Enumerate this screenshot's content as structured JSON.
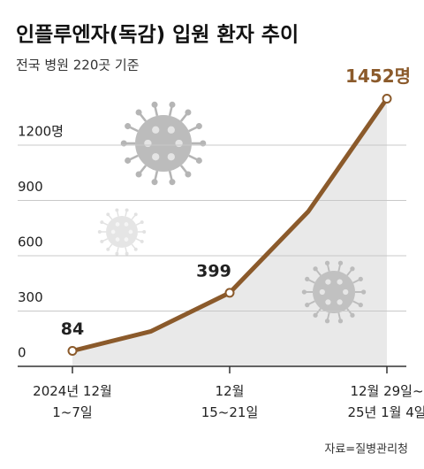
{
  "chart_data": {
    "type": "line",
    "title": "인플루엔자(독감) 입원 환자 추이",
    "subtitle": "전국 병원 220곳 기준",
    "source": "자료=질병관리청",
    "categories": [
      "2024년 12월\n1~7일",
      null,
      "12월\n15~21일",
      null,
      "12월 29일~\n25년 1월 4일"
    ],
    "series": [
      {
        "name": "입원 환자",
        "color": "#8b5a2b",
        "values": [
          84,
          190,
          399,
          840,
          1452
        ],
        "value_labels": [
          "84",
          null,
          "399",
          null,
          "1452명"
        ]
      }
    ],
    "ylim": [
      0,
      1500
    ],
    "yticks": [
      0,
      300,
      600,
      900,
      {
        "value": 1200,
        "label": "1200명"
      }
    ],
    "grid": true,
    "area_color": "#e9e9e9"
  }
}
